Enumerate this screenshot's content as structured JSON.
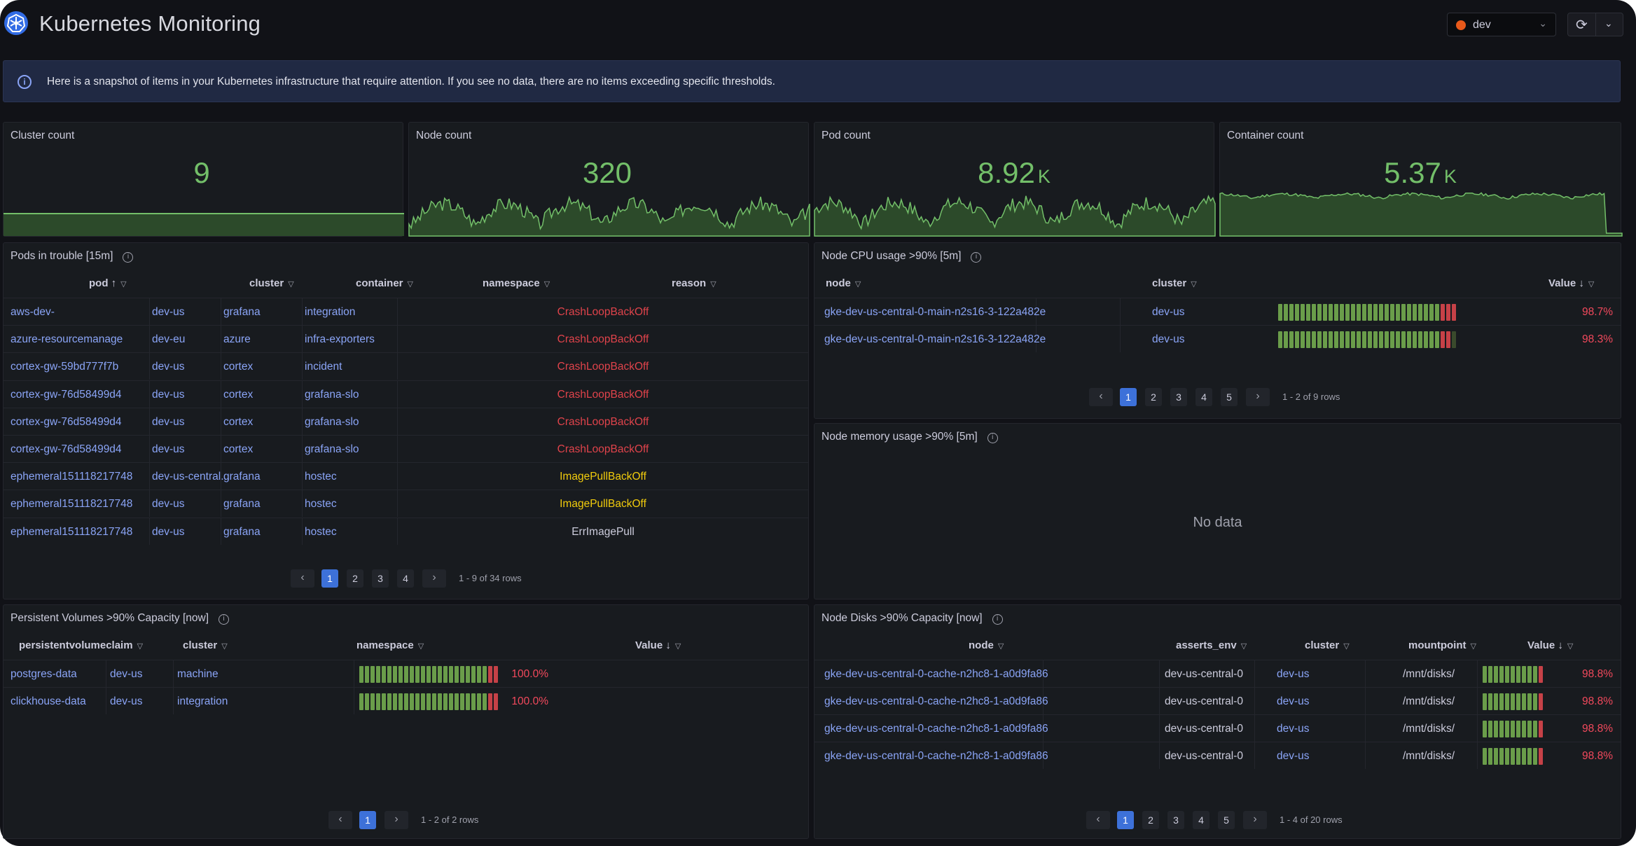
{
  "header": {
    "title": "Kubernetes Monitoring",
    "env_selector": "dev",
    "refresh_icon": "refresh-icon",
    "dropdown_icon": "chevron-down-icon"
  },
  "banner": {
    "text": "Here is a snapshot of items in your Kubernetes infrastructure that require attention. If you see no data, there are no items exceeding specific thresholds."
  },
  "stats": [
    {
      "title": "Cluster count",
      "value": "9",
      "unit": ""
    },
    {
      "title": "Node count",
      "value": "320",
      "unit": ""
    },
    {
      "title": "Pod count",
      "value": "8.92",
      "unit": "K"
    },
    {
      "title": "Container count",
      "value": "5.37",
      "unit": "K"
    }
  ],
  "pods": {
    "title": "Pods in trouble [15m]",
    "columns": [
      "pod",
      "cluster",
      "container",
      "namespace",
      "reason"
    ],
    "sort_indicator": "↑",
    "rows": [
      [
        "aws-dev-",
        "dev-us",
        "grafana",
        "integration",
        "CrashLoopBackOff"
      ],
      [
        "azure-resourcemanage",
        "dev-eu",
        "azure",
        "infra-exporters",
        "CrashLoopBackOff"
      ],
      [
        "cortex-gw-59bd777f7b",
        "dev-us",
        "cortex",
        "incident",
        "CrashLoopBackOff"
      ],
      [
        "cortex-gw-76d58499d4",
        "dev-us",
        "cortex",
        "grafana-slo",
        "CrashLoopBackOff"
      ],
      [
        "cortex-gw-76d58499d4",
        "dev-us",
        "cortex",
        "grafana-slo",
        "CrashLoopBackOff"
      ],
      [
        "cortex-gw-76d58499d4",
        "dev-us",
        "cortex",
        "grafana-slo",
        "CrashLoopBackOff"
      ],
      [
        "ephemeral151118217748",
        "dev-us-central...",
        "grafana",
        "hostec",
        "ImagePullBackOff"
      ],
      [
        "ephemeral151118217748",
        "dev-us",
        "grafana",
        "hostec",
        "ImagePullBackOff"
      ],
      [
        "ephemeral151118217748",
        "dev-us",
        "grafana",
        "hostec",
        "ErrImagePull"
      ]
    ],
    "pages": [
      "1",
      "2",
      "3",
      "4"
    ],
    "page_info": "1 - 9 of 34 rows"
  },
  "cpu": {
    "title": "Node CPU usage >90% [5m]",
    "columns": [
      "node",
      "cluster",
      "Value"
    ],
    "sort_indicator": "↓",
    "rows": [
      {
        "node": "gke-dev-us-central-0-main-n2s16-3-122a482e",
        "cluster": "dev-us",
        "pct_text": "98.7%",
        "value": 98.7
      },
      {
        "node": "gke-dev-us-central-0-main-n2s16-3-122a482e",
        "cluster": "dev-us",
        "pct_text": "98.3%",
        "value": 98.3
      }
    ],
    "pages": [
      "1",
      "2",
      "3",
      "4",
      "5"
    ],
    "page_info": "1 - 2 of 9 rows"
  },
  "memory": {
    "title": "Node memory usage >90% [5m]",
    "no_data": "No data"
  },
  "pv": {
    "title": "Persistent Volumes >90% Capacity [now]",
    "columns": [
      "persistentvolumeclaim",
      "cluster",
      "namespace",
      "Value"
    ],
    "sort_indicator": "↓",
    "rows": [
      {
        "pvc": "postgres-data",
        "cluster": "dev-us",
        "namespace": "machine",
        "pct_text": "100.0%",
        "value": 100
      },
      {
        "pvc": "clickhouse-data",
        "cluster": "dev-us",
        "namespace": "integration",
        "pct_text": "100.0%",
        "value": 100
      }
    ],
    "pages": [
      "1"
    ],
    "page_info": "1 - 2 of 2 rows"
  },
  "disks": {
    "title": "Node Disks >90% Capacity [now]",
    "columns": [
      "node",
      "asserts_env",
      "cluster",
      "mountpoint",
      "Value"
    ],
    "sort_indicator": "↓",
    "rows": [
      {
        "node": "gke-dev-us-central-0-cache-n2hc8-1-a0d9fa86",
        "env": "dev-us-central-0",
        "cluster": "dev-us",
        "mount": "/mnt/disks/",
        "pct_text": "98.8%",
        "value": 98.8
      },
      {
        "node": "gke-dev-us-central-0-cache-n2hc8-1-a0d9fa86",
        "env": "dev-us-central-0",
        "cluster": "dev-us",
        "mount": "/mnt/disks/",
        "pct_text": "98.8%",
        "value": 98.8
      },
      {
        "node": "gke-dev-us-central-0-cache-n2hc8-1-a0d9fa86",
        "env": "dev-us-central-0",
        "cluster": "dev-us",
        "mount": "/mnt/disks/",
        "pct_text": "98.8%",
        "value": 98.8
      },
      {
        "node": "gke-dev-us-central-0-cache-n2hc8-1-a0d9fa86",
        "env": "dev-us-central-0",
        "cluster": "dev-us",
        "mount": "/mnt/disks/",
        "pct_text": "98.8%",
        "value": 98.8
      }
    ],
    "pages": [
      "1",
      "2",
      "3",
      "4",
      "5"
    ],
    "page_info": "1 - 4 of 20 rows"
  },
  "colors": {
    "stat_green": "#73bf69",
    "link_blue": "#8aa4f6",
    "crash_red": "#e0434b",
    "image_pull_yellow": "#f2cc0c",
    "pct_red": "#f2495c",
    "pager_active": "#3d71d9"
  }
}
